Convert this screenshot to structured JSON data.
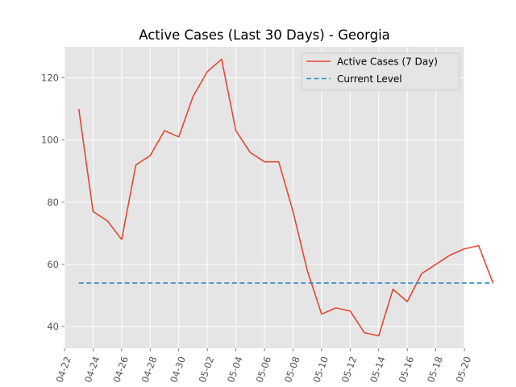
{
  "chart_data": {
    "type": "line",
    "title": "Active Cases (Last 30 Days) - Georgia",
    "xlabel": "",
    "ylabel": "",
    "x_axis": {
      "type": "date",
      "range": [
        "2020-04-22",
        "2020-05-20"
      ],
      "tick_labels": [
        "04-22",
        "04-24",
        "04-26",
        "04-28",
        "04-30",
        "05-02",
        "05-04",
        "05-06",
        "05-08",
        "05-10",
        "05-12",
        "05-14",
        "05-16",
        "05-18",
        "05-20"
      ],
      "tick_dates": [
        "2020-04-22",
        "2020-04-24",
        "2020-04-26",
        "2020-04-28",
        "2020-04-30",
        "2020-05-02",
        "2020-05-04",
        "2020-05-06",
        "2020-05-08",
        "2020-05-10",
        "2020-05-12",
        "2020-05-14",
        "2020-05-16",
        "2020-05-18",
        "2020-05-20"
      ]
    },
    "y_axis": {
      "range": [
        33,
        130
      ],
      "ticks": [
        40,
        60,
        80,
        100,
        120
      ]
    },
    "grid": true,
    "legend_position": "top-right",
    "series": [
      {
        "name": "Active Cases (7 Day)",
        "color": "#E24A33",
        "style": "solid",
        "points": [
          {
            "x": "2020-04-23",
            "y": 110
          },
          {
            "x": "2020-04-24",
            "y": 77
          },
          {
            "x": "2020-04-25",
            "y": 74
          },
          {
            "x": "2020-04-26",
            "y": 68
          },
          {
            "x": "2020-04-27",
            "y": 92
          },
          {
            "x": "2020-04-28",
            "y": 95
          },
          {
            "x": "2020-04-29",
            "y": 103
          },
          {
            "x": "2020-04-30",
            "y": 101
          },
          {
            "x": "2020-05-01",
            "y": 114
          },
          {
            "x": "2020-05-02",
            "y": 122
          },
          {
            "x": "2020-05-03",
            "y": 126
          },
          {
            "x": "2020-05-04",
            "y": 103
          },
          {
            "x": "2020-05-05",
            "y": 96
          },
          {
            "x": "2020-05-06",
            "y": 93
          },
          {
            "x": "2020-05-07",
            "y": 93
          },
          {
            "x": "2020-05-08",
            "y": 77
          },
          {
            "x": "2020-05-09",
            "y": 58
          },
          {
            "x": "2020-05-10",
            "y": 44
          },
          {
            "x": "2020-05-11",
            "y": 46
          },
          {
            "x": "2020-05-12",
            "y": 45
          },
          {
            "x": "2020-05-13",
            "y": 38
          },
          {
            "x": "2020-05-14",
            "y": 37
          },
          {
            "x": "2020-05-15",
            "y": 52
          },
          {
            "x": "2020-05-16",
            "y": 48
          },
          {
            "x": "2020-05-17",
            "y": 57
          },
          {
            "x": "2020-05-18",
            "y": 60
          },
          {
            "x": "2020-05-19",
            "y": 63
          },
          {
            "x": "2020-05-20",
            "y": 65
          },
          {
            "x": "2020-05-21",
            "y": 66
          },
          {
            "x": "2020-05-22",
            "y": 54
          }
        ]
      },
      {
        "name": "Current Level",
        "color": "#348ABD",
        "style": "dashed",
        "points": [
          {
            "x": "2020-04-23",
            "y": 54
          },
          {
            "x": "2020-05-22",
            "y": 54
          }
        ]
      }
    ]
  }
}
